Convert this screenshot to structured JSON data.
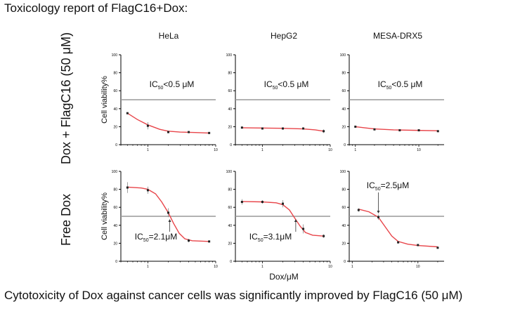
{
  "heading": "Toxicology report of FlagC16+Dox:",
  "caption": "Cytotoxicity of Dox against cancer cells was significantly improved by FlagC16 (50 μM)",
  "rows": [
    "Dox + FlagC16 (50 μM)",
    "Free Dox"
  ],
  "columns": [
    "HeLa",
    "HepG2",
    "MESA-DRX5"
  ],
  "colors": {
    "curve": "#e8454a",
    "threshold": "#999999",
    "point": "#222222"
  },
  "chart_data": [
    {
      "type": "line",
      "row": 0,
      "col": 0,
      "ylabel": "Cell viability%",
      "xlabel": "",
      "ic50_label": {
        "pre": "IC",
        "sub": "50",
        "post": "<0.5 μM"
      },
      "x": [
        0.5,
        1,
        2,
        4,
        8
      ],
      "y": [
        35,
        21,
        14,
        14,
        13
      ],
      "err": [
        0,
        4,
        1,
        1,
        1
      ],
      "curve": [
        [
          0.5,
          35
        ],
        [
          0.7,
          28
        ],
        [
          1,
          22
        ],
        [
          1.5,
          17
        ],
        [
          2,
          15
        ],
        [
          3,
          14
        ],
        [
          5,
          13.5
        ],
        [
          8,
          13
        ]
      ],
      "xlim": [
        0.4,
        10
      ],
      "ylim": [
        0,
        100
      ],
      "yticks": [
        0,
        20,
        40,
        60,
        80,
        100
      ],
      "xticks": [
        1,
        10
      ],
      "threshold": 50
    },
    {
      "type": "line",
      "row": 0,
      "col": 1,
      "ylabel": "",
      "xlabel": "",
      "ic50_label": {
        "pre": "IC",
        "sub": "50",
        "post": "<0.5 μM"
      },
      "x": [
        0.5,
        1,
        2,
        4,
        8
      ],
      "y": [
        19,
        18,
        18,
        18,
        15
      ],
      "err": [
        1,
        1,
        1,
        1,
        2
      ],
      "curve": [
        [
          0.5,
          18.8
        ],
        [
          1,
          18.5
        ],
        [
          2,
          18.2
        ],
        [
          4,
          17.5
        ],
        [
          6,
          16.5
        ],
        [
          8,
          15
        ]
      ],
      "xlim": [
        0.4,
        10
      ],
      "ylim": [
        0,
        100
      ],
      "yticks": [
        0,
        20,
        40,
        60,
        80,
        100
      ],
      "xticks": [
        1,
        10
      ],
      "threshold": 50
    },
    {
      "type": "line",
      "row": 0,
      "col": 2,
      "ylabel": "",
      "xlabel": "",
      "ic50_label": {
        "pre": "IC",
        "sub": "50",
        "post": "<0.5 μM"
      },
      "x": [
        1,
        2,
        5,
        10,
        20
      ],
      "y": [
        20,
        17,
        16,
        16,
        15
      ],
      "err": [
        1,
        1,
        1,
        1,
        1
      ],
      "curve": [
        [
          1,
          20
        ],
        [
          1.5,
          18.5
        ],
        [
          2,
          17.5
        ],
        [
          4,
          16.5
        ],
        [
          8,
          16
        ],
        [
          20,
          15.5
        ]
      ],
      "xlim": [
        0.8,
        25
      ],
      "ylim": [
        0,
        100
      ],
      "yticks": [
        0,
        20,
        40,
        60,
        80,
        100
      ],
      "xticks": [
        1,
        10
      ],
      "threshold": 50
    },
    {
      "type": "line",
      "row": 1,
      "col": 0,
      "ylabel": "Cell viability%",
      "xlabel": "",
      "ic50_label": {
        "pre": "IC",
        "sub": "50",
        "post": "=2.1μM"
      },
      "x": [
        0.5,
        1,
        2,
        4,
        8
      ],
      "y": [
        82,
        79,
        54,
        23,
        22
      ],
      "err": [
        6,
        4,
        5,
        2,
        1
      ],
      "curve": [
        [
          0.5,
          82.5
        ],
        [
          0.8,
          81.5
        ],
        [
          1,
          80
        ],
        [
          1.3,
          75
        ],
        [
          1.6,
          66
        ],
        [
          2,
          54
        ],
        [
          2.4,
          42
        ],
        [
          2.9,
          31
        ],
        [
          3.5,
          25
        ],
        [
          4.5,
          22.8
        ],
        [
          8,
          22
        ]
      ],
      "xlim": [
        0.4,
        10
      ],
      "ylim": [
        0,
        100
      ],
      "yticks": [
        0,
        20,
        40,
        60,
        80,
        100
      ],
      "xticks": [
        1,
        10
      ],
      "threshold": 50,
      "ic50_x": 2.1
    },
    {
      "type": "line",
      "row": 1,
      "col": 1,
      "ylabel": "",
      "xlabel": "Dox/μM",
      "ic50_label": {
        "pre": "IC",
        "sub": "50",
        "post": "=3.1μM"
      },
      "x": [
        0.5,
        1,
        2,
        4,
        8
      ],
      "y": [
        66,
        66,
        64,
        36,
        28
      ],
      "err": [
        3,
        2,
        4,
        5,
        2
      ],
      "curve": [
        [
          0.5,
          66.5
        ],
        [
          1,
          66
        ],
        [
          1.6,
          65
        ],
        [
          2,
          63
        ],
        [
          2.5,
          57
        ],
        [
          3,
          48
        ],
        [
          3.6,
          39
        ],
        [
          4.3,
          32
        ],
        [
          5.5,
          29
        ],
        [
          8,
          28
        ]
      ],
      "xlim": [
        0.4,
        10
      ],
      "ylim": [
        0,
        100
      ],
      "yticks": [
        0,
        20,
        40,
        60,
        80,
        100
      ],
      "xticks": [
        1,
        10
      ],
      "threshold": 50,
      "ic50_x": 3.1
    },
    {
      "type": "line",
      "row": 1,
      "col": 2,
      "ylabel": "",
      "xlabel": "",
      "ic50_label": {
        "pre": "IC",
        "sub": "50",
        "post": "=2.5μM"
      },
      "x": [
        1.25,
        2.5,
        5,
        10,
        20
      ],
      "y": [
        57,
        49,
        21,
        18,
        15
      ],
      "err": [
        2,
        3,
        1,
        1,
        1
      ],
      "curve": [
        [
          1.25,
          58
        ],
        [
          1.8,
          55
        ],
        [
          2.5,
          49
        ],
        [
          3.2,
          38
        ],
        [
          4,
          28
        ],
        [
          5,
          22
        ],
        [
          7,
          19
        ],
        [
          10,
          17.5
        ],
        [
          20,
          16
        ]
      ],
      "xlim": [
        0.9,
        25
      ],
      "ylim": [
        0,
        100
      ],
      "yticks": [
        0,
        20,
        40,
        60,
        80,
        100
      ],
      "xticks": [
        1,
        10
      ],
      "threshold": 50,
      "ic50_x": 2.5,
      "ic50_label_above": true
    }
  ]
}
